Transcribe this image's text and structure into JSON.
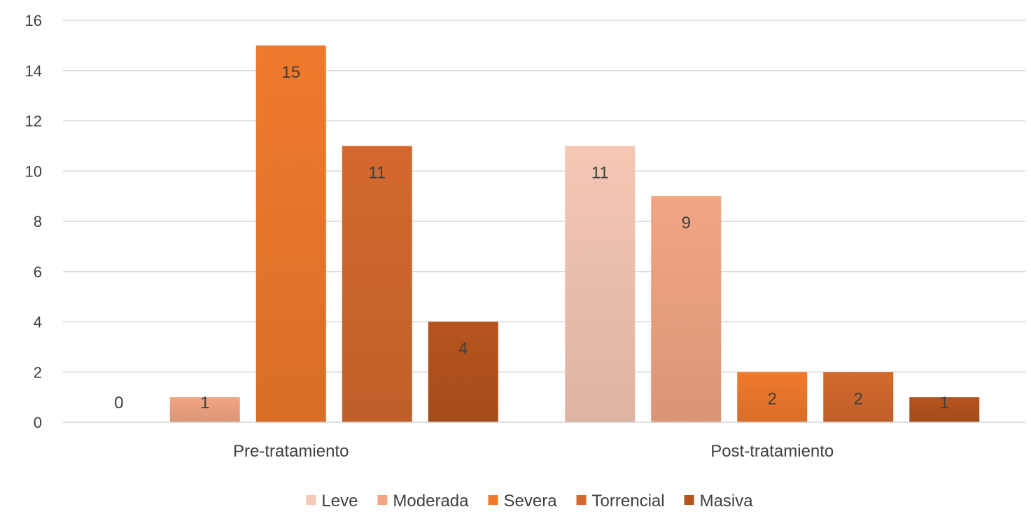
{
  "chart_data": {
    "type": "bar",
    "categories": [
      "Pre-tratamiento",
      "Post-tratamiento"
    ],
    "series": [
      {
        "name": "Leve",
        "values": [
          0,
          11
        ],
        "color": "#F5C7B5"
      },
      {
        "name": "Moderada",
        "values": [
          1,
          9
        ],
        "color": "#F2A583"
      },
      {
        "name": "Severa",
        "values": [
          15,
          2
        ],
        "color": "#F07A2C"
      },
      {
        "name": "Torrencial",
        "values": [
          11,
          2
        ],
        "color": "#D4692E"
      },
      {
        "name": "Masiva",
        "values": [
          4,
          1
        ],
        "color": "#B6541E"
      }
    ],
    "ylim": [
      0,
      16
    ],
    "yticks": [
      "0",
      "2",
      "4",
      "6",
      "8",
      "10",
      "12",
      "14",
      "16"
    ],
    "grid": true,
    "legend_position": "bottom",
    "title": "",
    "xlabel": "",
    "ylabel": ""
  }
}
